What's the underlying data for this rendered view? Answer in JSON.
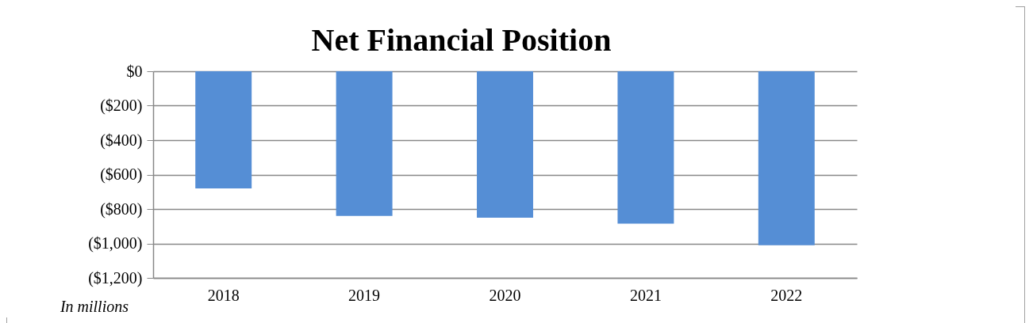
{
  "chart_data": {
    "type": "bar",
    "title": "Net Financial Position",
    "categories": [
      "2018",
      "2019",
      "2020",
      "2021",
      "2022"
    ],
    "values": [
      -680,
      -840,
      -850,
      -885,
      -1010
    ],
    "color": "#558ed5",
    "ylim": [
      -1200,
      0
    ],
    "yticks": [
      {
        "value": 0,
        "label": "$0"
      },
      {
        "value": -200,
        "label": "($200)"
      },
      {
        "value": -400,
        "label": "($400)"
      },
      {
        "value": -600,
        "label": "($600)"
      },
      {
        "value": -800,
        "label": "($800)"
      },
      {
        "value": -1000,
        "label": "($1,000)"
      },
      {
        "value": -1200,
        "label": "($1,200)"
      }
    ],
    "grid": "y",
    "annotations": [
      "In millions"
    ]
  }
}
